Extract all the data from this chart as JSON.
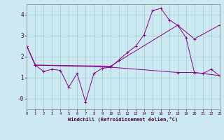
{
  "title": "",
  "xlabel": "Windchill (Refroidissement éolien,°C)",
  "ylabel": "",
  "bg_color": "#cce8f0",
  "grid_color": "#99cccc",
  "line_color": "#880088",
  "xlim": [
    0,
    23
  ],
  "ylim": [
    -0.5,
    4.5
  ],
  "yticks": [
    0,
    1,
    2,
    3,
    4
  ],
  "ytick_labels": [
    "-0",
    "1",
    "2",
    "3",
    "4"
  ],
  "xticks": [
    0,
    1,
    2,
    3,
    4,
    5,
    6,
    7,
    8,
    9,
    10,
    11,
    12,
    13,
    14,
    15,
    16,
    17,
    18,
    19,
    20,
    21,
    22,
    23
  ],
  "line1_x": [
    0,
    1,
    2,
    3,
    4,
    5,
    6,
    7,
    8,
    9,
    10,
    11,
    12,
    13,
    14,
    15,
    16,
    17,
    18,
    19,
    20,
    21,
    22,
    23
  ],
  "line1_y": [
    2.5,
    1.6,
    1.3,
    1.4,
    1.35,
    0.55,
    1.2,
    -0.15,
    1.2,
    1.45,
    1.5,
    1.85,
    2.2,
    2.5,
    3.05,
    4.2,
    4.3,
    3.75,
    3.5,
    2.9,
    1.25,
    1.2,
    1.4,
    1.1
  ],
  "line2_x": [
    0,
    1,
    10,
    18,
    20,
    23
  ],
  "line2_y": [
    2.5,
    1.6,
    1.55,
    3.5,
    2.85,
    3.5
  ],
  "line3_x": [
    0,
    1,
    10,
    18,
    20,
    23
  ],
  "line3_y": [
    2.5,
    1.6,
    1.5,
    1.25,
    1.25,
    1.1
  ]
}
